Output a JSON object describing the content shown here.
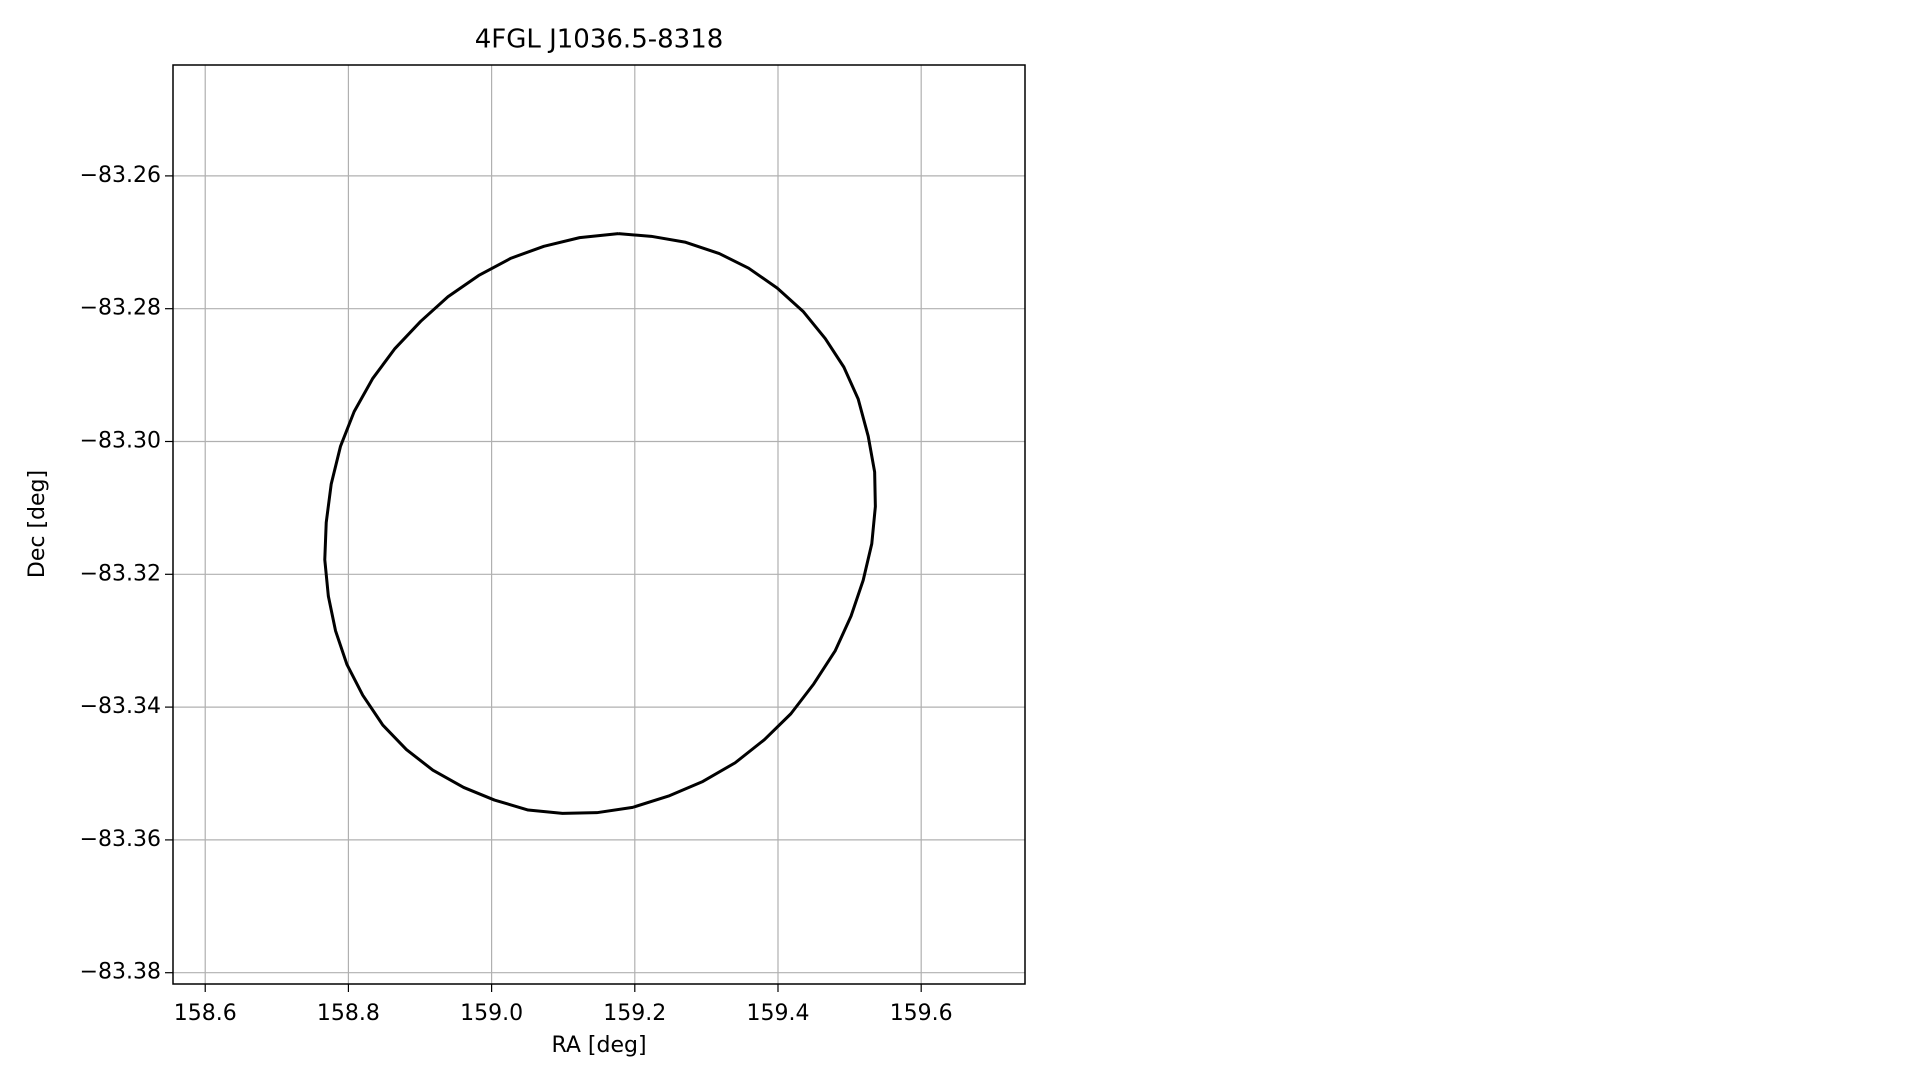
{
  "chart_data": {
    "type": "line",
    "title": "4FGL J1036.5-8318",
    "x_label": "RA [deg]",
    "y_label": "Dec [deg]",
    "xlim": [
      158.555,
      159.745
    ],
    "ylim": [
      -83.3817,
      -83.2433
    ],
    "xticks": [
      158.6,
      158.8,
      {
        "value": 159.0,
        "label": "159.0"
      },
      159.2,
      159.4,
      159.6
    ],
    "yticks": [
      {
        "value": -83.26,
        "label": "−83.26"
      },
      {
        "value": -83.28,
        "label": "−83.28"
      },
      {
        "value": -83.3,
        "label": "−83.30"
      },
      {
        "value": -83.32,
        "label": "−83.32"
      },
      {
        "value": -83.34,
        "label": "−83.34"
      },
      {
        "value": -83.36,
        "label": "−83.36"
      },
      {
        "value": -83.38,
        "label": "−83.38"
      }
    ],
    "grid": true,
    "series": [
      {
        "color": "#000000",
        "x": [
          159.177,
          159.223,
          159.271,
          159.318,
          159.359,
          159.399,
          159.435,
          159.466,
          159.492,
          159.512,
          159.526,
          159.535,
          159.536,
          159.531,
          159.519,
          159.502,
          159.48,
          159.45,
          159.418,
          159.381,
          159.34,
          159.295,
          159.247,
          159.197,
          159.147,
          159.099,
          159.051,
          159.004,
          158.961,
          158.918,
          158.881,
          158.848,
          158.82,
          158.798,
          158.782,
          158.772,
          158.767,
          158.769,
          158.776,
          158.789,
          158.808,
          158.834,
          158.865,
          158.901,
          158.939,
          158.982,
          159.027,
          159.073,
          159.123,
          159.177
        ],
        "values": [
          -83.2687,
          -83.2691,
          -83.27,
          -83.2717,
          -83.2739,
          -83.2769,
          -83.2804,
          -83.2845,
          -83.2888,
          -83.2936,
          -83.2992,
          -83.3046,
          -83.3098,
          -83.3154,
          -83.3209,
          -83.3263,
          -83.3315,
          -83.3365,
          -83.341,
          -83.3449,
          -83.3484,
          -83.3512,
          -83.3534,
          -83.3551,
          -83.3559,
          -83.356,
          -83.3555,
          -83.354,
          -83.3521,
          -83.3495,
          -83.3464,
          -83.3427,
          -83.3382,
          -83.3336,
          -83.3285,
          -83.3233,
          -83.3178,
          -83.3122,
          -83.3064,
          -83.3007,
          -83.2955,
          -83.2905,
          -83.286,
          -83.2819,
          -83.2782,
          -83.275,
          -83.2724,
          -83.2706,
          -83.2693,
          -83.2687
        ]
      }
    ]
  }
}
